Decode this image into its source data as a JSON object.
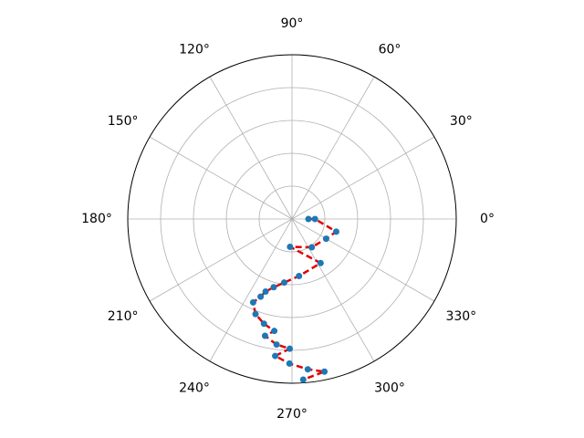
{
  "chart_data": {
    "type": "polar",
    "theta": [
      0,
      0,
      344,
      330,
      305,
      266,
      303,
      277,
      263,
      255,
      250,
      248,
      245,
      249,
      255,
      261,
      257,
      263,
      269,
      263,
      269,
      276,
      282,
      274
    ],
    "r": [
      0.1,
      0.14,
      0.28,
      0.24,
      0.21,
      0.17,
      0.32,
      0.35,
      0.39,
      0.43,
      0.47,
      0.51,
      0.56,
      0.62,
      0.66,
      0.69,
      0.73,
      0.77,
      0.79,
      0.84,
      0.88,
      0.92,
      0.95,
      0.98
    ],
    "marker_color": "#1f77b4",
    "line_color": "#e00000",
    "line_style": "dashed",
    "rlim": [
      0,
      1
    ],
    "rticks": [
      0.2,
      0.4,
      0.6,
      0.8
    ],
    "thetaticks": [
      {
        "value": 0,
        "label": "0°"
      },
      {
        "value": 30,
        "label": "30°"
      },
      {
        "value": 60,
        "label": "60°"
      },
      {
        "value": 90,
        "label": "90°"
      },
      {
        "value": 120,
        "label": "120°"
      },
      {
        "value": 150,
        "label": "150°"
      },
      {
        "value": 180,
        "label": "180°"
      },
      {
        "value": 210,
        "label": "210°"
      },
      {
        "value": 240,
        "label": "240°"
      },
      {
        "value": 270,
        "label": "270°"
      },
      {
        "value": 300,
        "label": "300°"
      },
      {
        "value": 330,
        "label": "330°"
      }
    ],
    "grid": true
  }
}
